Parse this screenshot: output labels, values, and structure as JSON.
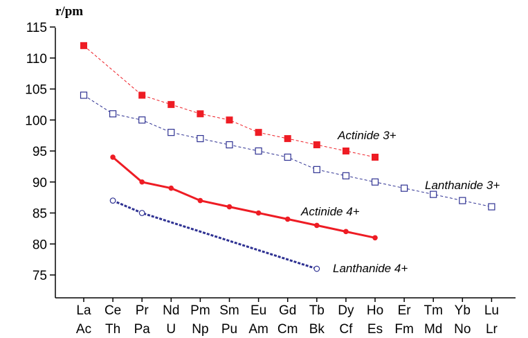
{
  "chart_data": {
    "type": "line",
    "ylabel": "r/pm",
    "xlabel": "",
    "ylim": [
      72,
      116
    ],
    "yticks": [
      75,
      80,
      85,
      90,
      95,
      100,
      105,
      110,
      115
    ],
    "categories_row1": [
      "La",
      "Ce",
      "Pr",
      "Nd",
      "Pm",
      "Sm",
      "Eu",
      "Gd",
      "Tb",
      "Dy",
      "Ho",
      "Er",
      "Tm",
      "Yb",
      "Lu"
    ],
    "categories_row2": [
      "Ac",
      "Th",
      "Pa",
      "U",
      "Np",
      "Pu",
      "Am",
      "Cm",
      "Bk",
      "Cf",
      "Es",
      "Fm",
      "Md",
      "No",
      "Lr"
    ],
    "grid": false,
    "series": [
      {
        "name": "Actinide 3+",
        "color": "#ee1c24",
        "marker": "filled-square",
        "line": "dashed-thin",
        "start_index": 0,
        "values": [
          112,
          104,
          102.5,
          101,
          100,
          98,
          97,
          96,
          95,
          94
        ],
        "value_indices": [
          0,
          2,
          3,
          4,
          5,
          6,
          7,
          8,
          9,
          10
        ]
      },
      {
        "name": "Lanthanide 3+",
        "color": "#2e3192",
        "marker": "open-square",
        "line": "dashed-thin",
        "values": [
          104,
          101,
          100,
          98,
          97,
          96,
          95,
          94,
          92,
          91,
          90,
          89,
          88,
          87,
          86
        ],
        "value_indices": [
          0,
          1,
          2,
          3,
          4,
          5,
          6,
          7,
          8,
          9,
          10,
          11,
          12,
          13,
          14
        ]
      },
      {
        "name": "Actinide 4+",
        "color": "#ee1c24",
        "marker": "filled-circle",
        "line": "solid-thick",
        "values": [
          94,
          90,
          89,
          87,
          86,
          85,
          84,
          83,
          82,
          81
        ],
        "value_indices": [
          1,
          2,
          3,
          4,
          5,
          6,
          7,
          8,
          9,
          10
        ]
      },
      {
        "name": "Lanthanide 4+",
        "color": "#2e3192",
        "marker": "open-circle",
        "line": "dashed-thick",
        "values": [
          87,
          85,
          76
        ],
        "value_indices": [
          1,
          2,
          8
        ]
      }
    ]
  }
}
